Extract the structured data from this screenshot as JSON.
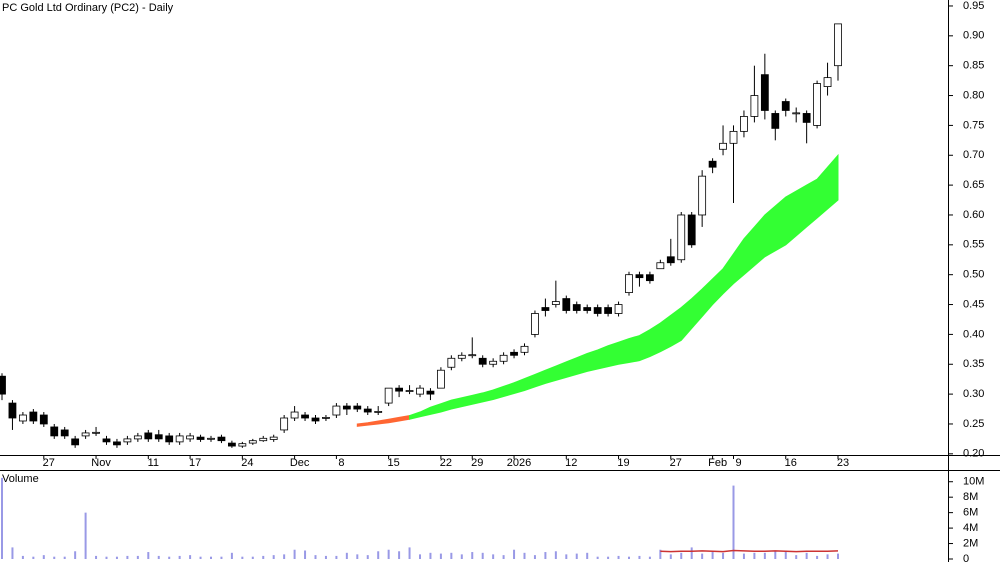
{
  "chart_data": {
    "type": "candlestick",
    "title": "PC Gold Ltd Ordinary (PC2) - Daily",
    "categories": [
      null,
      null,
      null,
      null,
      "27",
      null,
      null,
      null,
      null,
      "Nov",
      null,
      null,
      null,
      null,
      "11",
      null,
      null,
      null,
      "17",
      null,
      null,
      null,
      null,
      "24",
      null,
      null,
      null,
      null,
      "Dec",
      null,
      null,
      null,
      "8",
      null,
      null,
      null,
      null,
      "15",
      null,
      null,
      null,
      null,
      "22",
      null,
      null,
      "29",
      null,
      null,
      null,
      "2026",
      null,
      null,
      null,
      null,
      "12",
      null,
      null,
      null,
      null,
      "19",
      null,
      null,
      null,
      null,
      "27",
      null,
      null,
      null,
      "Feb",
      null,
      "9",
      null,
      null,
      null,
      null,
      "16",
      null,
      null,
      null,
      null,
      "23"
    ],
    "open": [
      0.33,
      0.285,
      0.255,
      0.27,
      0.265,
      0.245,
      0.24,
      0.225,
      0.23,
      0.235,
      0.225,
      0.22,
      0.22,
      0.225,
      0.235,
      0.232,
      0.23,
      0.22,
      0.225,
      0.228,
      0.225,
      0.228,
      0.218,
      0.213,
      0.218,
      0.222,
      0.224,
      0.24,
      0.26,
      0.265,
      0.26,
      0.26,
      0.265,
      0.28,
      0.28,
      0.275,
      0.27,
      0.285,
      0.31,
      0.305,
      0.3,
      0.305,
      0.31,
      0.345,
      0.36,
      0.365,
      0.36,
      0.35,
      0.355,
      0.37,
      0.37,
      0.4,
      0.445,
      0.45,
      0.46,
      0.45,
      0.445,
      0.445,
      0.445,
      0.435,
      0.47,
      0.5,
      0.5,
      0.51,
      0.53,
      0.525,
      0.6,
      0.6,
      0.69,
      0.71,
      0.72,
      0.74,
      0.765,
      0.835,
      0.77,
      0.79,
      0.77,
      0.77,
      0.75,
      0.815,
      0.85
    ],
    "high": [
      0.335,
      0.29,
      0.27,
      0.275,
      0.27,
      0.25,
      0.245,
      0.23,
      0.24,
      0.245,
      0.23,
      0.225,
      0.23,
      0.235,
      0.24,
      0.24,
      0.235,
      0.235,
      0.235,
      0.232,
      0.23,
      0.232,
      0.222,
      0.22,
      0.225,
      0.23,
      0.232,
      0.265,
      0.28,
      0.27,
      0.265,
      0.265,
      0.285,
      0.285,
      0.285,
      0.28,
      0.28,
      0.31,
      0.315,
      0.315,
      0.315,
      0.31,
      0.345,
      0.365,
      0.37,
      0.395,
      0.365,
      0.36,
      0.37,
      0.375,
      0.385,
      0.44,
      0.46,
      0.49,
      0.465,
      0.455,
      0.45,
      0.45,
      0.45,
      0.455,
      0.505,
      0.505,
      0.505,
      0.525,
      0.56,
      0.605,
      0.605,
      0.675,
      0.695,
      0.75,
      0.75,
      0.775,
      0.85,
      0.87,
      0.775,
      0.795,
      0.78,
      0.775,
      0.825,
      0.855,
      0.92
    ],
    "low": [
      0.29,
      0.24,
      0.25,
      0.25,
      0.245,
      0.225,
      0.225,
      0.21,
      0.225,
      0.23,
      0.215,
      0.21,
      0.215,
      0.22,
      0.22,
      0.22,
      0.215,
      0.215,
      0.22,
      0.22,
      0.22,
      0.218,
      0.21,
      0.21,
      0.215,
      0.22,
      0.22,
      0.235,
      0.255,
      0.255,
      0.25,
      0.255,
      0.26,
      0.265,
      0.27,
      0.265,
      0.265,
      0.28,
      0.295,
      0.3,
      0.295,
      0.29,
      0.31,
      0.34,
      0.355,
      0.36,
      0.345,
      0.345,
      0.35,
      0.36,
      0.365,
      0.395,
      0.43,
      0.445,
      0.435,
      0.435,
      0.435,
      0.43,
      0.43,
      0.43,
      0.465,
      0.48,
      0.485,
      0.51,
      0.515,
      0.52,
      0.545,
      0.58,
      0.67,
      0.7,
      0.62,
      0.73,
      0.755,
      0.76,
      0.725,
      0.765,
      0.755,
      0.72,
      0.745,
      0.8,
      0.825
    ],
    "close": [
      0.3,
      0.26,
      0.265,
      0.255,
      0.25,
      0.23,
      0.23,
      0.215,
      0.235,
      0.236,
      0.22,
      0.215,
      0.225,
      0.23,
      0.225,
      0.225,
      0.22,
      0.23,
      0.23,
      0.224,
      0.226,
      0.222,
      0.213,
      0.217,
      0.222,
      0.226,
      0.228,
      0.26,
      0.27,
      0.26,
      0.255,
      0.261,
      0.28,
      0.275,
      0.275,
      0.27,
      0.271,
      0.31,
      0.305,
      0.306,
      0.31,
      0.3,
      0.34,
      0.36,
      0.365,
      0.366,
      0.35,
      0.355,
      0.365,
      0.365,
      0.38,
      0.435,
      0.44,
      0.455,
      0.44,
      0.44,
      0.44,
      0.435,
      0.435,
      0.45,
      0.5,
      0.495,
      0.49,
      0.52,
      0.52,
      0.6,
      0.55,
      0.665,
      0.68,
      0.72,
      0.74,
      0.765,
      0.8,
      0.775,
      0.745,
      0.775,
      0.771,
      0.755,
      0.82,
      0.83,
      0.92
    ],
    "up_color": "#ffffff",
    "down_color": "#000000",
    "outline_color": "#000000",
    "overlays": [
      {
        "color": "#ff6633",
        "upper": [
          null,
          null,
          null,
          null,
          null,
          null,
          null,
          null,
          null,
          null,
          null,
          null,
          null,
          null,
          null,
          null,
          null,
          null,
          null,
          null,
          null,
          null,
          null,
          null,
          null,
          null,
          null,
          null,
          null,
          null,
          null,
          null,
          null,
          null,
          0.25,
          0.252,
          0.255,
          0.258,
          0.261,
          0.264,
          null,
          null,
          null,
          null,
          null,
          null,
          null,
          null,
          null,
          null,
          null,
          null,
          null,
          null,
          null,
          null,
          null,
          null,
          null,
          null,
          null,
          null,
          null,
          null,
          null,
          null,
          null,
          null,
          null,
          null,
          null,
          null,
          null,
          null,
          null,
          null,
          null,
          null,
          null,
          null,
          null
        ],
        "lower": [
          null,
          null,
          null,
          null,
          null,
          null,
          null,
          null,
          null,
          null,
          null,
          null,
          null,
          null,
          null,
          null,
          null,
          null,
          null,
          null,
          null,
          null,
          null,
          null,
          null,
          null,
          null,
          null,
          null,
          null,
          null,
          null,
          null,
          null,
          0.246,
          0.248,
          0.25,
          0.252,
          0.255,
          0.258,
          null,
          null,
          null,
          null,
          null,
          null,
          null,
          null,
          null,
          null,
          null,
          null,
          null,
          null,
          null,
          null,
          null,
          null,
          null,
          null,
          null,
          null,
          null,
          null,
          null,
          null,
          null,
          null,
          null,
          null,
          null,
          null,
          null,
          null,
          null,
          null,
          null,
          null,
          null,
          null,
          null
        ]
      },
      {
        "color": "#33ff33",
        "upper": [
          null,
          null,
          null,
          null,
          null,
          null,
          null,
          null,
          null,
          null,
          null,
          null,
          null,
          null,
          null,
          null,
          null,
          null,
          null,
          null,
          null,
          null,
          null,
          null,
          null,
          null,
          null,
          null,
          null,
          null,
          null,
          null,
          null,
          null,
          null,
          null,
          null,
          null,
          null,
          0.264,
          0.27,
          0.278,
          0.284,
          0.29,
          0.294,
          0.298,
          0.302,
          0.307,
          0.313,
          0.319,
          0.326,
          0.333,
          0.34,
          0.347,
          0.354,
          0.361,
          0.368,
          0.374,
          0.381,
          0.387,
          0.393,
          0.398,
          0.408,
          0.419,
          0.432,
          0.445,
          0.46,
          0.476,
          0.493,
          0.51,
          0.535,
          0.56,
          0.58,
          0.6,
          0.615,
          0.63,
          0.64,
          0.65,
          0.66,
          0.68,
          0.7
        ],
        "lower": [
          null,
          null,
          null,
          null,
          null,
          null,
          null,
          null,
          null,
          null,
          null,
          null,
          null,
          null,
          null,
          null,
          null,
          null,
          null,
          null,
          null,
          null,
          null,
          null,
          null,
          null,
          null,
          null,
          null,
          null,
          null,
          null,
          null,
          null,
          null,
          null,
          null,
          null,
          null,
          0.258,
          0.262,
          0.266,
          0.27,
          0.275,
          0.279,
          0.283,
          0.287,
          0.291,
          0.296,
          0.301,
          0.306,
          0.312,
          0.318,
          0.323,
          0.328,
          0.333,
          0.338,
          0.342,
          0.346,
          0.35,
          0.353,
          0.356,
          0.363,
          0.371,
          0.38,
          0.39,
          0.41,
          0.43,
          0.45,
          0.468,
          0.485,
          0.5,
          0.515,
          0.53,
          0.54,
          0.55,
          0.565,
          0.58,
          0.595,
          0.61,
          0.625
        ]
      }
    ],
    "ylim": [
      0.19,
      0.96
    ],
    "yticks": [
      {
        "value": 0.2,
        "label": "0.20"
      },
      0.25,
      {
        "value": 0.3,
        "label": "0.30"
      },
      0.35,
      {
        "value": 0.4,
        "label": "0.40"
      },
      0.45,
      {
        "value": 0.5,
        "label": "0.50"
      },
      0.55,
      {
        "value": 0.6,
        "label": "0.60"
      },
      0.65,
      {
        "value": 0.7,
        "label": "0.70"
      },
      0.75,
      {
        "value": 0.8,
        "label": "0.80"
      },
      0.85,
      {
        "value": 0.9,
        "label": "0.90"
      },
      0.95
    ],
    "volume": {
      "label": "Volume",
      "color": "#9999e6",
      "label_color": "#6666cc",
      "values": [
        10500000,
        1500000,
        400000,
        300000,
        500000,
        300000,
        300000,
        1000000,
        6000000,
        400000,
        300000,
        300000,
        400000,
        400000,
        900000,
        400000,
        300000,
        400000,
        500000,
        300000,
        300000,
        300000,
        800000,
        300000,
        300000,
        400000,
        500000,
        600000,
        1200000,
        1100000,
        500000,
        400000,
        400000,
        800000,
        600000,
        500000,
        1000000,
        1200000,
        1000000,
        1500000,
        600000,
        800000,
        700000,
        800000,
        600000,
        900000,
        800000,
        600000,
        500000,
        1200000,
        800000,
        500000,
        900000,
        1000000,
        600000,
        700000,
        800000,
        300000,
        300000,
        400000,
        300000,
        400000,
        300000,
        1200000,
        600000,
        800000,
        1500000,
        700000,
        900000,
        800000,
        9500000,
        700000,
        800000,
        800000,
        1000000,
        900000,
        500000,
        800000,
        400000,
        600000,
        700000
      ],
      "average": {
        "color": "#cc3333",
        "values": [
          null,
          null,
          null,
          null,
          null,
          null,
          null,
          null,
          null,
          null,
          null,
          null,
          null,
          null,
          null,
          null,
          null,
          null,
          null,
          null,
          null,
          null,
          null,
          null,
          null,
          null,
          null,
          null,
          null,
          null,
          null,
          null,
          null,
          null,
          null,
          null,
          null,
          null,
          null,
          null,
          null,
          null,
          null,
          null,
          null,
          null,
          null,
          null,
          null,
          null,
          null,
          null,
          null,
          null,
          null,
          null,
          null,
          null,
          null,
          null,
          null,
          null,
          null,
          1000000,
          950000,
          1000000,
          1000000,
          1050000,
          1000000,
          950000,
          1100000,
          1050000,
          1000000,
          1000000,
          1050000,
          1000000,
          950000,
          1000000,
          1000000,
          1000000,
          1050000
        ]
      },
      "ylim": [
        0,
        11000000
      ],
      "yticks": [
        0,
        {
          "value": 2000000,
          "label": "2M"
        },
        {
          "value": 4000000,
          "label": "4M"
        },
        {
          "value": 6000000,
          "label": "6M"
        },
        {
          "value": 8000000,
          "label": "8M"
        },
        {
          "value": 10000000,
          "label": "10M"
        }
      ]
    }
  }
}
